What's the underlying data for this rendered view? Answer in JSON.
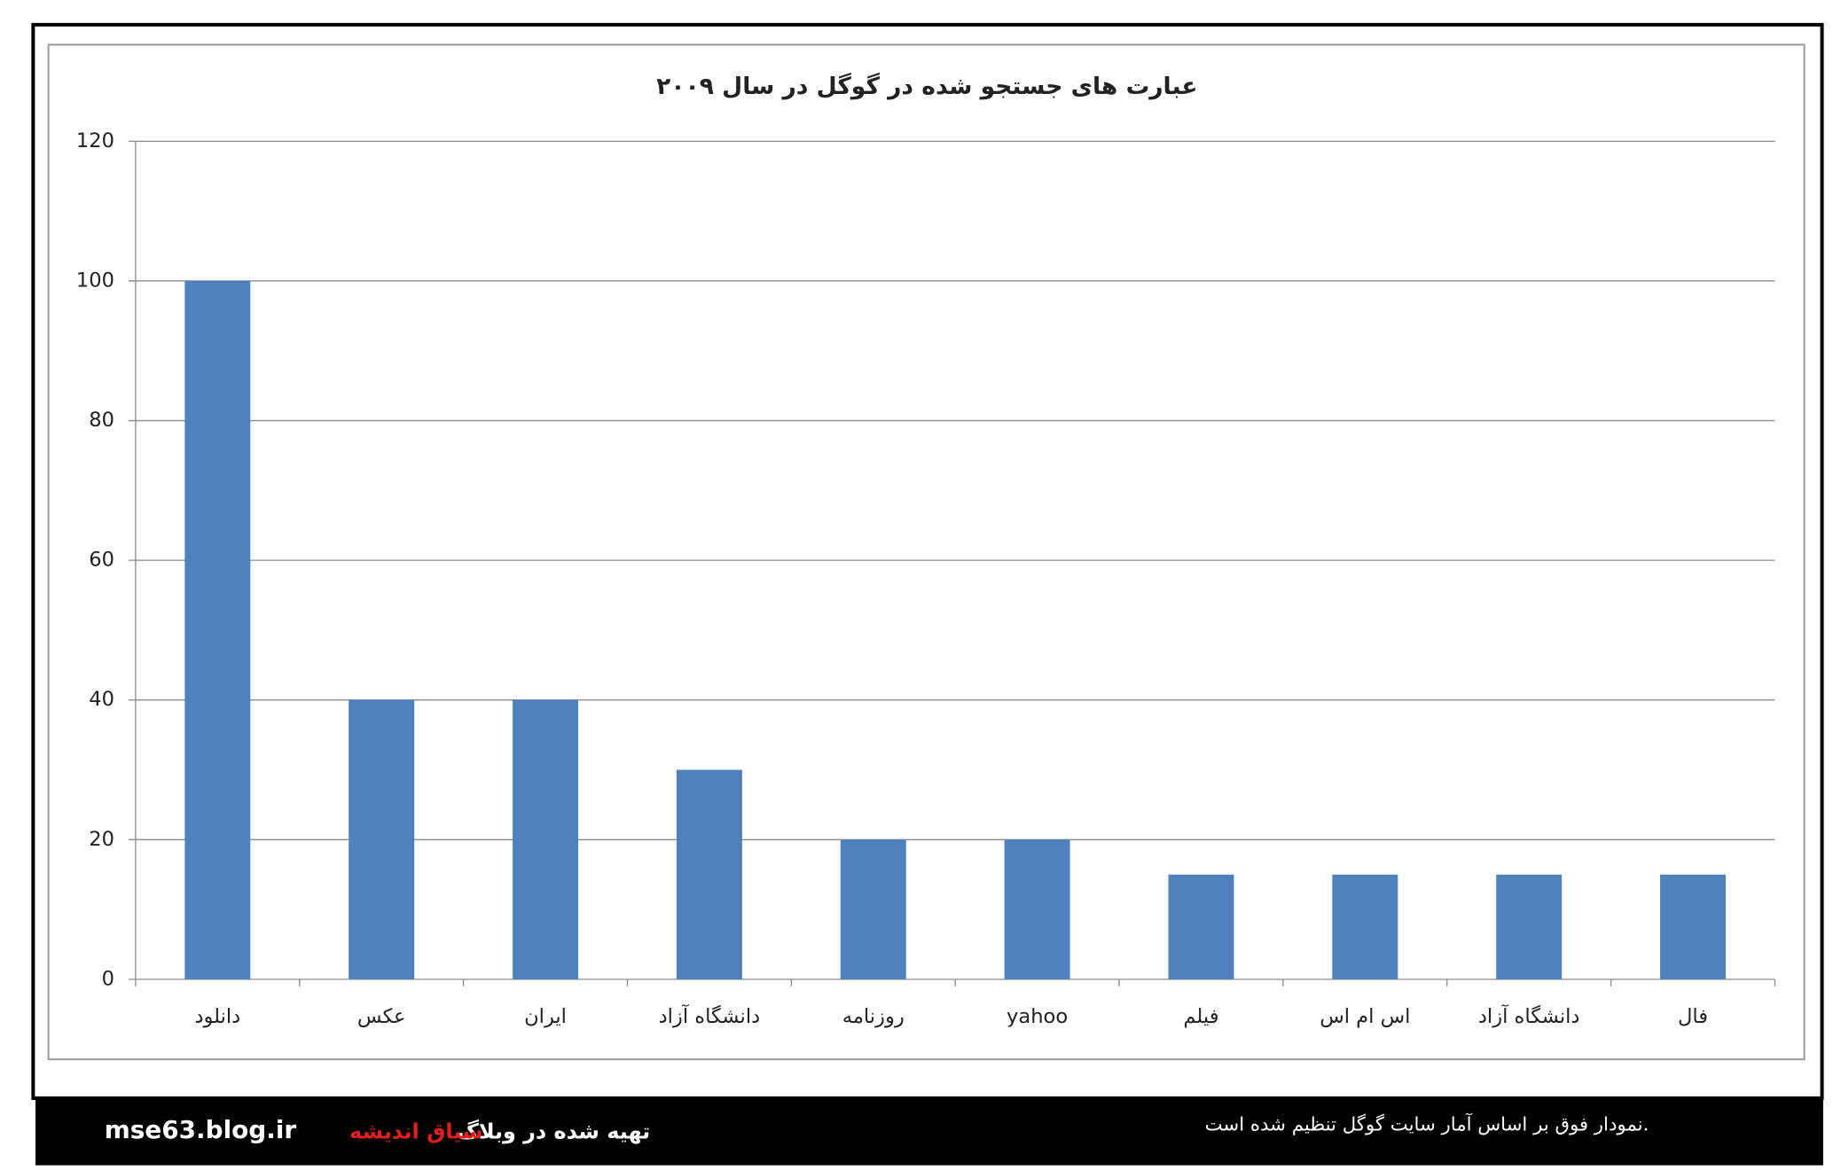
{
  "chart_data": {
    "type": "bar",
    "title": "عبارت های جستجو شده در گوگل در سال ۲۰۰۹",
    "categories": [
      "دانلود",
      "عکس",
      "ایران",
      "دانشگاه آزاد",
      "روزنامه",
      "yahoo",
      "فیلم",
      "اس ام اس",
      "دانشگاه آزاد",
      "فال"
    ],
    "values": [
      100,
      40,
      40,
      30,
      20,
      20,
      15,
      15,
      15,
      15
    ],
    "color": "#4f81bd",
    "ylim": [
      0,
      120
    ],
    "yticks": [
      0,
      20,
      40,
      60,
      80,
      100,
      120
    ],
    "grid": true
  },
  "footer": {
    "site": "mse63.blog.ir",
    "credit": "تهیه شده در وبلاگ",
    "blog": "سیاق اندیشه",
    "note": "نمودار فوق بر اساس آمار سایت گوگل تنظیم شده است."
  }
}
